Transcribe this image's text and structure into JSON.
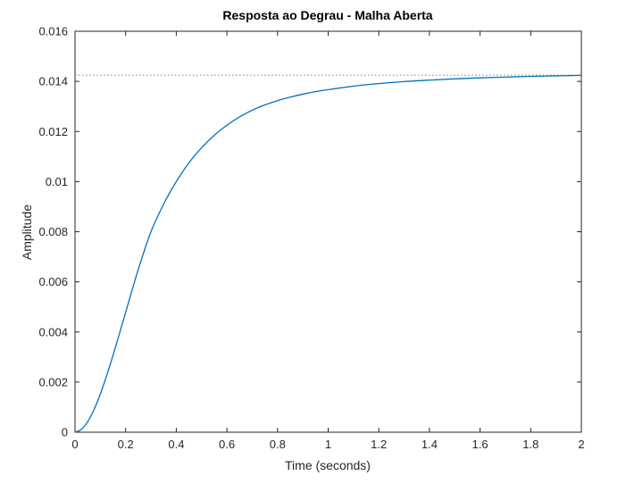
{
  "chart_data": {
    "type": "line",
    "title": "Resposta ao Degrau - Malha Aberta",
    "xlabel": "Time (seconds)",
    "ylabel": "Amplitude",
    "xlim": [
      0,
      2
    ],
    "ylim": [
      0,
      0.016
    ],
    "grid": false,
    "legend": "none",
    "x_ticks": [
      "0",
      "0.2",
      "0.4",
      "0.6",
      "0.8",
      "1",
      "1.2",
      "1.4",
      "1.6",
      "1.8",
      "2"
    ],
    "y_ticks": [
      "0",
      "0.002",
      "0.004",
      "0.006",
      "0.008",
      "0.01",
      "0.012",
      "0.014",
      "0.016"
    ],
    "steady_state_value": 0.01425,
    "series": [
      {
        "color": "#0072BD",
        "x": [
          0,
          0.025,
          0.05,
          0.075,
          0.1,
          0.125,
          0.15,
          0.175,
          0.2,
          0.25,
          0.3,
          0.35,
          0.4,
          0.45,
          0.5,
          0.55,
          0.6,
          0.65,
          0.7,
          0.75,
          0.8,
          0.85,
          0.9,
          0.95,
          1.0,
          1.1,
          1.2,
          1.3,
          1.4,
          1.5,
          1.6,
          1.7,
          1.8,
          1.9,
          2.0
        ],
        "y": [
          0,
          0.00011,
          0.00042,
          0.0009,
          0.00152,
          0.00226,
          0.00306,
          0.00392,
          0.00478,
          0.0065,
          0.008,
          0.0091,
          0.01,
          0.01075,
          0.01135,
          0.01185,
          0.01225,
          0.01258,
          0.01285,
          0.01306,
          0.01323,
          0.01337,
          0.01349,
          0.01359,
          0.01367,
          0.01381,
          0.01391,
          0.01399,
          0.01405,
          0.0141,
          0.01414,
          0.01417,
          0.0142,
          0.01422,
          0.01424
        ]
      }
    ],
    "colors": {
      "line": "#0072BD",
      "axes": "#262626",
      "reference_line": "#808080",
      "background": "#ffffff"
    }
  }
}
